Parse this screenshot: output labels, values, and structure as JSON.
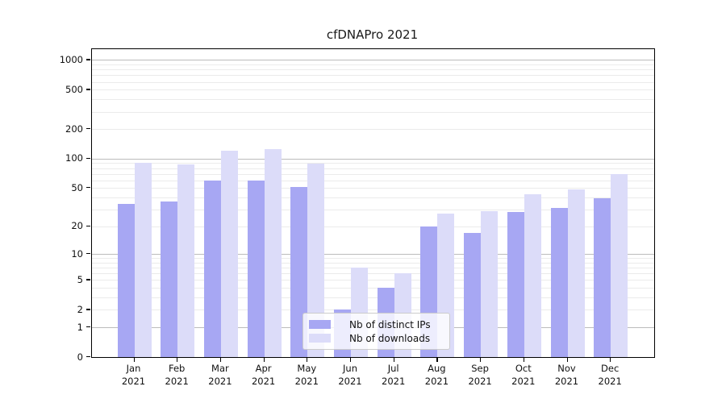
{
  "title": "cfDNAPro 2021",
  "chart_data": {
    "type": "bar",
    "title": "cfDNAPro 2021",
    "scale": "symlog",
    "categories": [
      "Jan",
      "Feb",
      "Mar",
      "Apr",
      "May",
      "Jun",
      "Jul",
      "Aug",
      "Sep",
      "Oct",
      "Nov",
      "Dec"
    ],
    "category_sublabel": "2021",
    "series": [
      {
        "name": "Nb of distinct IPs",
        "color": "#a7a7f3",
        "values": [
          34,
          36,
          60,
          60,
          51,
          2,
          4,
          20,
          17,
          28,
          31,
          39
        ]
      },
      {
        "name": "Nb of downloads",
        "color": "#dcdcf9",
        "values": [
          90,
          88,
          120,
          125,
          89,
          7,
          6,
          27,
          29,
          43,
          48,
          70
        ]
      }
    ],
    "y_ticks": [
      0,
      1,
      2,
      5,
      10,
      20,
      50,
      100,
      200,
      500,
      1000
    ],
    "ylim": [
      0,
      1280
    ],
    "xlabel": "",
    "ylabel": "",
    "grid": true,
    "legend_position": "bottom-center",
    "colors": {
      "major_gridline": "#bcbcbc",
      "minor_gridline": "#ebebeb",
      "axis_spine": "#000000",
      "background": "#ffffff"
    }
  }
}
